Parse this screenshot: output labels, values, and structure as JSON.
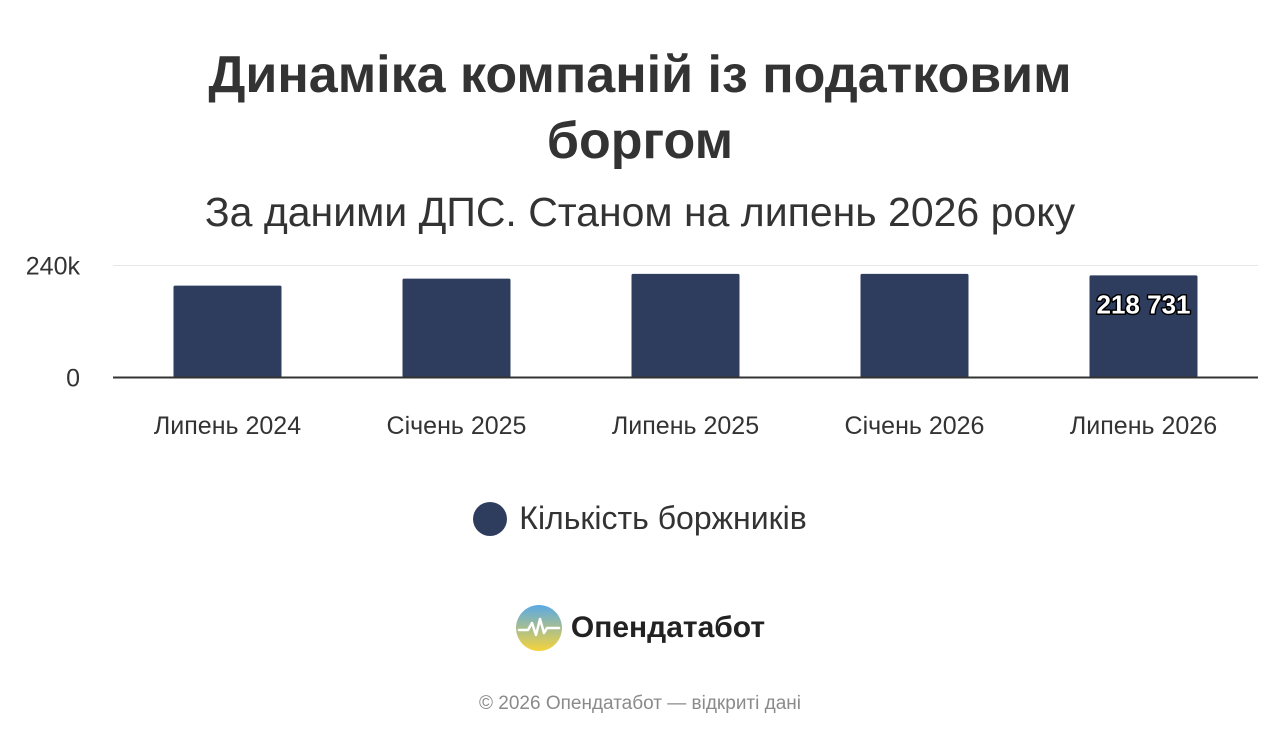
{
  "chart_data": {
    "type": "bar",
    "title": "Динаміка компаній із податковим боргом",
    "subtitle": "За даними ДПС. Станом на липень 2026 року",
    "categories": [
      "Липень 2024",
      "Січень 2025",
      "Липень 2025",
      "Січень 2026",
      "Липень 2026"
    ],
    "series": [
      {
        "name": "Кількість боржників",
        "color": "#2e3d5e",
        "values": [
          197000,
          212000,
          222000,
          222000,
          218731
        ]
      }
    ],
    "data_labels": [
      null,
      null,
      null,
      null,
      "218 731"
    ],
    "ylim": [
      0,
      250000
    ],
    "y_ticks": [
      {
        "value": 0,
        "label": "0"
      },
      {
        "value": 240000,
        "label": "240k"
      }
    ],
    "grid": true,
    "legend": "bottom-center"
  },
  "branding": {
    "name": "Опендатабот",
    "logo_icon": "opendatabot-logo-icon"
  },
  "footer": {
    "text": "© 2026 Опендатабот — відкриті дані"
  },
  "colors": {
    "bar": "#2e3d5e",
    "text": "#333333",
    "grid": "#e6e6e6",
    "axis": "#333333",
    "logo_top": "#5aa9e6",
    "logo_bottom": "#f5d33b"
  }
}
